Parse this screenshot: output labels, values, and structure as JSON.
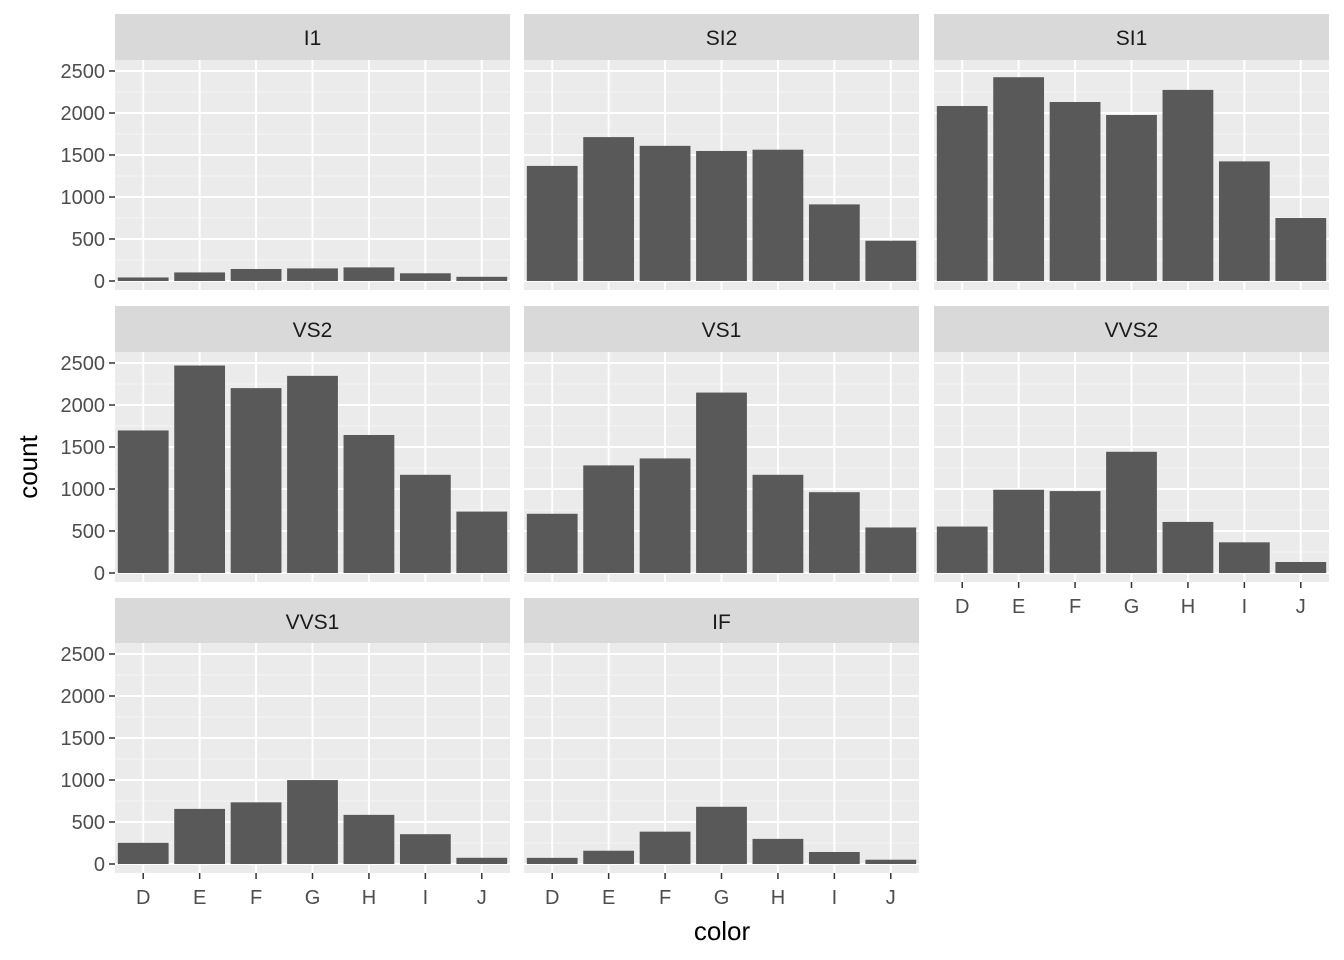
{
  "chart_data": {
    "type": "bar",
    "xlabel": "color",
    "ylabel": "count",
    "categories": [
      "D",
      "E",
      "F",
      "G",
      "H",
      "I",
      "J"
    ],
    "y_ticks": [
      0,
      500,
      1000,
      1500,
      2000,
      2500
    ],
    "ylim": [
      0,
      2600
    ],
    "grid": true,
    "facet_by": "clarity",
    "facets": [
      {
        "label": "I1",
        "values": [
          42,
          102,
          143,
          150,
          162,
          92,
          50
        ]
      },
      {
        "label": "SI2",
        "values": [
          1370,
          1713,
          1609,
          1548,
          1563,
          912,
          479
        ]
      },
      {
        "label": "SI1",
        "values": [
          2083,
          2426,
          2131,
          1976,
          2275,
          1424,
          750
        ]
      },
      {
        "label": "VS2",
        "values": [
          1697,
          2470,
          2201,
          2347,
          1643,
          1169,
          731
        ]
      },
      {
        "label": "VS1",
        "values": [
          705,
          1281,
          1364,
          2148,
          1169,
          962,
          542
        ]
      },
      {
        "label": "VVS2",
        "values": [
          553,
          991,
          975,
          1443,
          608,
          365,
          131
        ]
      },
      {
        "label": "VVS1",
        "values": [
          252,
          656,
          734,
          999,
          585,
          355,
          74
        ]
      },
      {
        "label": "IF",
        "values": [
          73,
          158,
          385,
          681,
          299,
          143,
          51
        ]
      }
    ]
  }
}
